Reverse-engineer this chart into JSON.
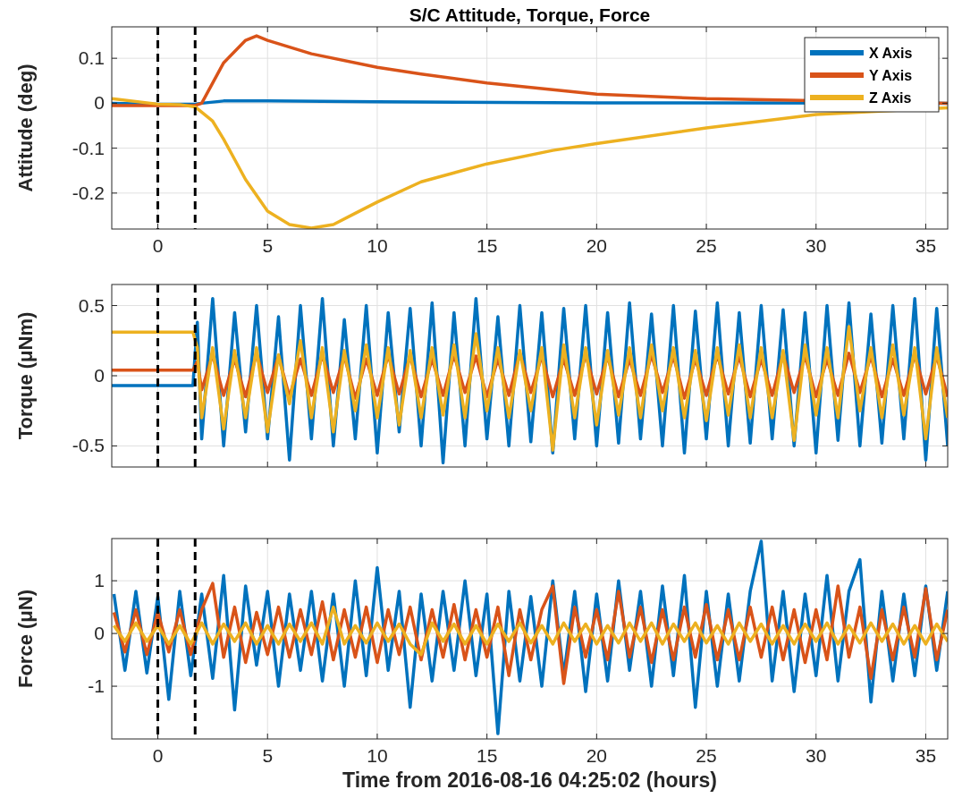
{
  "chart_data": [
    {
      "type": "line",
      "title": "S/C Attitude, Torque, Force",
      "ylabel": "Attitude (deg)",
      "xlim": [
        -2.1,
        36
      ],
      "xticks": [
        0,
        5,
        10,
        15,
        20,
        25,
        30,
        35
      ],
      "ylim": [
        -0.28,
        0.17
      ],
      "yticks": [
        -0.2,
        -0.1,
        0,
        0.1
      ],
      "grid": true,
      "legend": "top right",
      "ref_lines": [
        {
          "axis": "x",
          "value": 0,
          "color": "#000000",
          "line_style": "dashed"
        },
        {
          "axis": "x",
          "value": 1.7,
          "color": "#000000",
          "line_style": "dashed"
        }
      ],
      "series": [
        {
          "name": "X Axis",
          "color": "#0072bd",
          "x": [
            -2.1,
            0,
            1.7,
            2,
            3,
            5,
            10,
            20,
            36
          ],
          "values": [
            0,
            -0.002,
            -0.002,
            0,
            0.005,
            0.005,
            0.003,
            0.001,
            0
          ]
        },
        {
          "name": "Y Axis",
          "color": "#d95319",
          "x": [
            -2.1,
            0,
            1.7,
            2,
            3,
            4,
            4.5,
            5,
            7,
            10,
            12,
            15,
            18,
            20,
            25,
            36
          ],
          "values": [
            -0.005,
            -0.005,
            -0.005,
            0,
            0.09,
            0.14,
            0.15,
            0.14,
            0.11,
            0.08,
            0.065,
            0.045,
            0.03,
            0.02,
            0.01,
            0
          ]
        },
        {
          "name": "Z Axis",
          "color": "#edb120",
          "x": [
            -2.1,
            0,
            1,
            1.7,
            2.5,
            3,
            4,
            5,
            6,
            7,
            8,
            9,
            10,
            12,
            15,
            18,
            20,
            25,
            30,
            36
          ],
          "values": [
            0.01,
            -0.002,
            -0.003,
            -0.008,
            -0.04,
            -0.08,
            -0.17,
            -0.24,
            -0.27,
            -0.278,
            -0.27,
            -0.245,
            -0.22,
            -0.175,
            -0.135,
            -0.105,
            -0.09,
            -0.055,
            -0.025,
            -0.01
          ]
        }
      ]
    },
    {
      "type": "line",
      "ylabel": "Torque (μNm)",
      "xlim": [
        -2.1,
        36
      ],
      "xticks": [
        0,
        5,
        10,
        15,
        20,
        25,
        30,
        35
      ],
      "ylim": [
        -0.65,
        0.65
      ],
      "yticks": [
        -0.5,
        0,
        0.5
      ],
      "grid": true,
      "tick_labels": "y",
      "ref_lines": [
        {
          "axis": "x",
          "value": 0,
          "color": "#000000",
          "line_style": "dashed"
        },
        {
          "axis": "x",
          "value": 1.7,
          "color": "#000000",
          "line_style": "dashed"
        }
      ],
      "x": [
        -2.1,
        1.6,
        1.8,
        2,
        2.5,
        3,
        3.5,
        4,
        4.5,
        5,
        5.5,
        6,
        6.5,
        7,
        7.5,
        8,
        8.5,
        9,
        9.5,
        10,
        10.5,
        11,
        11.5,
        12,
        12.5,
        13,
        13.5,
        14,
        14.5,
        15,
        15.5,
        16,
        16.5,
        17,
        17.5,
        18,
        18.5,
        19,
        19.5,
        20,
        20.5,
        21,
        21.5,
        22,
        22.5,
        23,
        23.5,
        24,
        24.5,
        25,
        25.5,
        26,
        26.5,
        27,
        27.5,
        28,
        28.5,
        29,
        29.5,
        30,
        30.5,
        31,
        31.5,
        32,
        32.5,
        33,
        33.5,
        34,
        34.5,
        35,
        35.5,
        36
      ],
      "series": [
        {
          "color": "#0072bd",
          "values": [
            -0.07,
            -0.07,
            0.38,
            -0.45,
            0.55,
            -0.5,
            0.45,
            -0.4,
            0.5,
            -0.45,
            0.42,
            -0.6,
            0.5,
            -0.45,
            0.55,
            -0.5,
            0.4,
            -0.45,
            0.5,
            -0.55,
            0.45,
            -0.4,
            0.48,
            -0.5,
            0.52,
            -0.62,
            0.45,
            -0.5,
            0.55,
            -0.45,
            0.42,
            -0.5,
            0.5,
            -0.47,
            0.45,
            -0.55,
            0.48,
            -0.45,
            0.5,
            -0.5,
            0.45,
            -0.48,
            0.52,
            -0.45,
            0.44,
            -0.5,
            0.5,
            -0.55,
            0.46,
            -0.45,
            0.52,
            -0.5,
            0.45,
            -0.48,
            0.5,
            -0.45,
            0.47,
            -0.5,
            0.45,
            -0.55,
            0.5,
            -0.46,
            0.52,
            -0.5,
            0.44,
            -0.48,
            0.5,
            -0.45,
            0.55,
            -0.6,
            0.48,
            -0.5
          ]
        },
        {
          "color": "#d95319",
          "values": [
            0.04,
            0.04,
            0.1,
            -0.1,
            0.15,
            -0.14,
            0.12,
            -0.15,
            0.16,
            -0.12,
            0.14,
            -0.15,
            0.12,
            -0.14,
            0.15,
            -0.12,
            0.14,
            -0.16,
            0.12,
            -0.14,
            0.15,
            -0.13,
            0.14,
            -0.15,
            0.12,
            -0.14,
            0.15,
            -0.12,
            0.14,
            -0.15,
            0.12,
            -0.14,
            0.16,
            -0.12,
            0.14,
            -0.15,
            0.12,
            -0.14,
            0.15,
            -0.13,
            0.14,
            -0.15,
            0.12,
            -0.14,
            0.15,
            -0.12,
            0.14,
            -0.16,
            0.12,
            -0.14,
            0.15,
            -0.13,
            0.14,
            -0.15,
            0.12,
            -0.14,
            0.15,
            -0.12,
            0.14,
            -0.15,
            0.12,
            -0.14,
            0.16,
            -0.12,
            0.14,
            -0.15,
            0.12,
            -0.14,
            0.15,
            -0.13,
            0.14,
            -0.15
          ]
        },
        {
          "color": "#edb120",
          "values": [
            0.31,
            0.31,
            0.2,
            -0.3,
            0.2,
            -0.38,
            0.18,
            -0.3,
            0.2,
            -0.4,
            0.15,
            -0.2,
            0.25,
            -0.3,
            0.2,
            -0.4,
            0.18,
            -0.25,
            0.22,
            -0.3,
            0.2,
            -0.35,
            0.18,
            -0.3,
            0.2,
            -0.28,
            0.22,
            -0.3,
            0.3,
            -0.25,
            0.2,
            -0.3,
            0.18,
            -0.25,
            0.2,
            -0.53,
            0.22,
            -0.3,
            0.2,
            -0.35,
            0.18,
            -0.28,
            0.2,
            -0.3,
            0.22,
            -0.25,
            0.2,
            -0.3,
            0.18,
            -0.32,
            0.2,
            -0.28,
            0.22,
            -0.3,
            0.2,
            -0.3,
            0.18,
            -0.46,
            0.22,
            -0.28,
            0.2,
            -0.3,
            0.35,
            -0.25,
            0.2,
            -0.3,
            0.22,
            -0.28,
            0.2,
            -0.45,
            0.2,
            -0.3
          ]
        }
      ]
    },
    {
      "type": "line",
      "ylabel": "Force (μN)",
      "xlabel": "Time from 2016-08-16 04:25:02 (hours)",
      "xlim": [
        -2.1,
        36
      ],
      "xticks": [
        0,
        5,
        10,
        15,
        20,
        25,
        30,
        35
      ],
      "ylim": [
        -2,
        1.8
      ],
      "yticks": [
        -1,
        0,
        1
      ],
      "grid": true,
      "ref_lines": [
        {
          "axis": "x",
          "value": 0,
          "color": "#000000",
          "line_style": "dashed"
        },
        {
          "axis": "x",
          "value": 1.7,
          "color": "#000000",
          "line_style": "dashed"
        }
      ],
      "x": [
        -2,
        -1.5,
        -1,
        -0.5,
        0,
        0.5,
        1,
        1.5,
        2,
        2.5,
        3,
        3.5,
        4,
        4.5,
        5,
        5.5,
        6,
        6.5,
        7,
        7.5,
        8,
        8.5,
        9,
        9.5,
        10,
        10.5,
        11,
        11.5,
        12,
        12.5,
        13,
        13.5,
        14,
        14.5,
        15,
        15.5,
        16,
        16.5,
        17,
        17.5,
        18,
        18.5,
        19,
        19.5,
        20,
        20.5,
        21,
        21.5,
        22,
        22.5,
        23,
        23.5,
        24,
        24.5,
        25,
        25.5,
        26,
        26.5,
        27,
        27.5,
        28,
        28.5,
        29,
        29.5,
        30,
        30.5,
        31,
        31.5,
        32,
        32.5,
        33,
        33.5,
        34,
        34.5,
        35,
        35.5,
        36
      ],
      "series": [
        {
          "color": "#0072bd",
          "values": [
            0.75,
            -0.7,
            0.8,
            -0.75,
            0.7,
            -1.25,
            0.8,
            -0.8,
            0.75,
            -0.85,
            1.1,
            -1.45,
            0.9,
            -0.6,
            0.8,
            -1.0,
            0.75,
            -0.7,
            0.8,
            -0.9,
            0.75,
            -1.0,
            1.0,
            -0.8,
            1.25,
            -0.7,
            0.8,
            -1.4,
            0.75,
            -0.9,
            0.8,
            -0.7,
            1.0,
            -0.8,
            0.75,
            -1.9,
            0.8,
            -0.9,
            0.7,
            -1.0,
            1.0,
            -0.8,
            0.8,
            -1.1,
            0.75,
            -0.9,
            1.0,
            -0.7,
            0.8,
            -1.0,
            0.9,
            -0.8,
            1.1,
            -1.4,
            0.8,
            -1.0,
            0.75,
            -0.9,
            0.8,
            1.75,
            -0.9,
            0.8,
            -1.1,
            0.75,
            -0.8,
            1.1,
            -0.9,
            0.8,
            1.4,
            -1.3,
            0.8,
            -0.9,
            0.75,
            -0.8,
            0.9,
            -0.7,
            0.8
          ]
        },
        {
          "color": "#d95319",
          "values": [
            0.4,
            -0.35,
            0.45,
            -0.4,
            0.4,
            -0.35,
            0.45,
            -0.4,
            0.45,
            0.95,
            -0.45,
            0.5,
            -0.55,
            0.4,
            -0.4,
            0.5,
            -0.45,
            0.45,
            -0.4,
            0.6,
            -0.5,
            0.45,
            -0.45,
            0.5,
            -0.55,
            0.45,
            -0.4,
            0.5,
            -0.5,
            0.45,
            -0.45,
            0.55,
            -0.5,
            0.45,
            -0.45,
            0.5,
            -0.8,
            0.45,
            -0.5,
            0.45,
            0.9,
            -0.95,
            0.5,
            -0.45,
            0.45,
            -0.5,
            0.8,
            -0.45,
            0.5,
            -0.55,
            0.45,
            -0.5,
            0.5,
            -0.45,
            0.55,
            -0.5,
            0.45,
            -0.5,
            0.5,
            -0.45,
            0.5,
            -0.5,
            0.45,
            -0.55,
            0.45,
            -0.5,
            0.9,
            -0.45,
            0.5,
            -0.85,
            0.45,
            -0.5,
            0.5,
            -0.45,
            0.85,
            -0.5,
            0.45
          ]
        },
        {
          "color": "#edb120",
          "values": [
            0.15,
            -0.15,
            0.2,
            -0.15,
            0.15,
            -0.2,
            0.15,
            -0.2,
            0.2,
            -0.2,
            0.18,
            -0.15,
            0.2,
            -0.2,
            0.15,
            -0.2,
            0.18,
            -0.15,
            0.2,
            -0.2,
            0.5,
            -0.2,
            0.15,
            -0.18,
            0.2,
            -0.15,
            0.18,
            -0.2,
            -0.4,
            0.2,
            -0.15,
            0.18,
            -0.2,
            0.15,
            -0.2,
            0.18,
            -0.15,
            0.2,
            -0.18,
            0.15,
            -0.2,
            0.2,
            -0.15,
            0.18,
            -0.2,
            0.15,
            -0.18,
            0.2,
            -0.15,
            0.2,
            -0.2,
            0.18,
            -0.15,
            0.2,
            -0.18,
            0.15,
            -0.2,
            0.2,
            -0.15,
            0.18,
            -0.2,
            0.15,
            -0.2,
            0.18,
            -0.15,
            0.2,
            -0.2,
            0.15,
            -0.18,
            0.2,
            -0.15,
            0.18,
            -0.2,
            0.15,
            -0.2,
            0.18,
            -0.15
          ]
        }
      ]
    }
  ]
}
